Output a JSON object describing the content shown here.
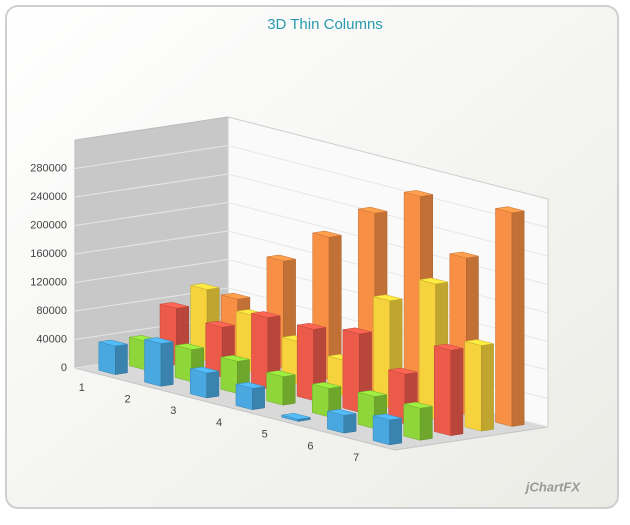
{
  "chart_data": {
    "type": "bar3d",
    "title": "3D Thin Columns",
    "categories": [
      "1",
      "2",
      "3",
      "4",
      "5",
      "6",
      "7"
    ],
    "series": [
      {
        "color": "#4aa8e0",
        "values": [
          40000,
          60000,
          35000,
          30000,
          3000,
          25000,
          35000
        ]
      },
      {
        "color": "#8ed63a",
        "values": [
          40000,
          45000,
          45000,
          40000,
          40000,
          45000,
          45000
        ]
      },
      {
        "color": "#ec5a4a",
        "values": [
          80000,
          70000,
          100000,
          100000,
          110000,
          70000,
          120000
        ]
      },
      {
        "color": "#f6d33c",
        "values": [
          100000,
          80000,
          60000,
          50000,
          150000,
          190000,
          120000
        ]
      },
      {
        "color": "#f78f45",
        "values": [
          80000,
          150000,
          200000,
          250000,
          290000,
          220000,
          300000
        ]
      }
    ],
    "ylim": [
      0,
      320000
    ],
    "yticks": [
      0,
      40000,
      80000,
      120000,
      160000,
      200000,
      240000,
      280000
    ],
    "grid": true,
    "watermark": "jChartFX"
  }
}
